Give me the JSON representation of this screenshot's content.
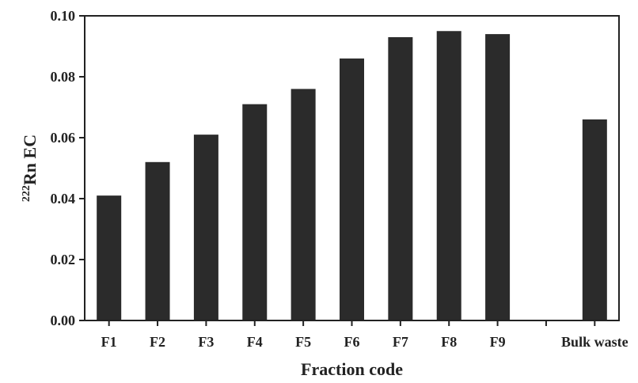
{
  "chart_data": {
    "type": "bar",
    "categories": [
      "F1",
      "F2",
      "F3",
      "F4",
      "F5",
      "F6",
      "F7",
      "F8",
      "F9",
      "",
      "Bulk waste"
    ],
    "values": [
      0.041,
      0.052,
      0.061,
      0.071,
      0.076,
      0.086,
      0.093,
      0.095,
      0.094,
      null,
      0.066
    ],
    "xlabel": "Fraction code",
    "ylabel": {
      "superscript": "222",
      "text": "Rn EC"
    },
    "ylim": [
      0,
      0.1
    ],
    "yticks": [
      "0.00",
      "0.02",
      "0.04",
      "0.06",
      "0.08",
      "0.10"
    ],
    "grid": false,
    "bar_color": "#2b2b2b"
  }
}
